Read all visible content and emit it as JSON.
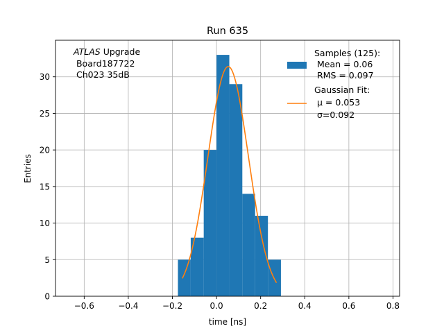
{
  "chart_data": {
    "type": "bar",
    "title": "Run 635",
    "xlabel": "time [ns]",
    "ylabel": "Entries",
    "xlim": [
      -0.73,
      0.83
    ],
    "ylim": [
      0,
      35
    ],
    "grid": true,
    "x_ticks": [
      -0.6,
      -0.4,
      -0.2,
      0.0,
      0.2,
      0.4,
      0.6,
      0.8
    ],
    "x_tick_labels": [
      "−0.6",
      "−0.4",
      "−0.2",
      "0.0",
      "0.2",
      "0.4",
      "0.6",
      "0.8"
    ],
    "y_ticks": [
      0,
      5,
      10,
      15,
      20,
      25,
      30
    ],
    "y_tick_labels": [
      "0",
      "5",
      "10",
      "15",
      "20",
      "25",
      "30"
    ],
    "histogram": {
      "color": "#1f77b4",
      "bins": [
        {
          "x0": -0.175,
          "x1": -0.117,
          "count": 5
        },
        {
          "x0": -0.117,
          "x1": -0.058,
          "count": 8
        },
        {
          "x0": -0.058,
          "x1": 0.0,
          "count": 20
        },
        {
          "x0": 0.0,
          "x1": 0.058,
          "count": 33
        },
        {
          "x0": 0.058,
          "x1": 0.117,
          "count": 29
        },
        {
          "x0": 0.117,
          "x1": 0.175,
          "count": 14
        },
        {
          "x0": 0.175,
          "x1": 0.233,
          "count": 11
        },
        {
          "x0": 0.233,
          "x1": 0.292,
          "count": 5
        }
      ]
    },
    "fit": {
      "color": "#ff7f0e",
      "mu": 0.053,
      "sigma": 0.092,
      "amplitude": 31.4,
      "x_range": [
        -0.155,
        0.272
      ]
    },
    "annotation": {
      "line1_italic": "ATLAS",
      "line1_rest": " Upgrade",
      "line2": " Board187722",
      "line3": " Ch023 35dB"
    },
    "legend": {
      "placement": "top-right",
      "samples_title": "Samples (125):",
      "samples_mean": " Mean = 0.06",
      "samples_rms": " RMS = 0.097",
      "fit_title": "Gaussian Fit:",
      "fit_mu": "μ = 0.053",
      "fit_sigma": "σ=0.092"
    }
  }
}
